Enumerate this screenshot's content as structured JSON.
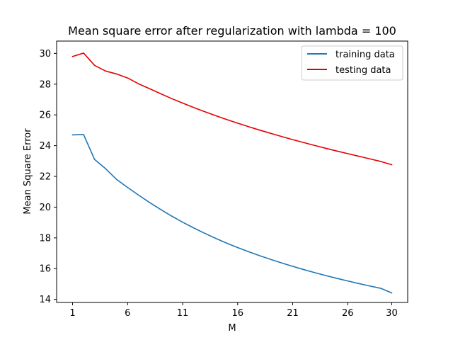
{
  "chart_data": {
    "type": "line",
    "title": "Mean square error after regularization with lambda = 100",
    "xlabel": "M",
    "ylabel": "Mean Square Error",
    "xlim": [
      1,
      30
    ],
    "ylim": [
      13.8,
      30.8
    ],
    "xticks": [
      1,
      6,
      11,
      16,
      21,
      26,
      30
    ],
    "yticks": [
      14,
      16,
      18,
      20,
      22,
      24,
      26,
      28,
      30
    ],
    "grid": false,
    "legend": "top-right",
    "x": [
      1,
      2,
      3,
      4,
      5,
      6,
      7,
      8,
      9,
      10,
      11,
      12,
      13,
      14,
      15,
      16,
      17,
      18,
      19,
      20,
      21,
      22,
      23,
      24,
      25,
      26,
      27,
      28,
      29,
      30
    ],
    "series": [
      {
        "name": "training data",
        "color": "#1f77b4",
        "values": [
          24.7,
          24.72,
          23.1,
          22.5,
          21.8,
          21.28,
          20.78,
          20.3,
          19.85,
          19.42,
          19.02,
          18.65,
          18.3,
          17.97,
          17.66,
          17.37,
          17.1,
          16.84,
          16.6,
          16.37,
          16.15,
          15.94,
          15.74,
          15.55,
          15.37,
          15.2,
          15.03,
          14.87,
          14.72,
          14.42
        ]
      },
      {
        "name": "testing data",
        "color": "#e60000",
        "values": [
          29.8,
          30.02,
          29.22,
          28.85,
          28.66,
          28.4,
          28.02,
          27.7,
          27.38,
          27.06,
          26.77,
          26.48,
          26.21,
          25.95,
          25.7,
          25.46,
          25.23,
          25.01,
          24.8,
          24.59,
          24.39,
          24.2,
          24.01,
          23.83,
          23.65,
          23.48,
          23.31,
          23.14,
          22.97,
          22.76
        ]
      }
    ]
  }
}
